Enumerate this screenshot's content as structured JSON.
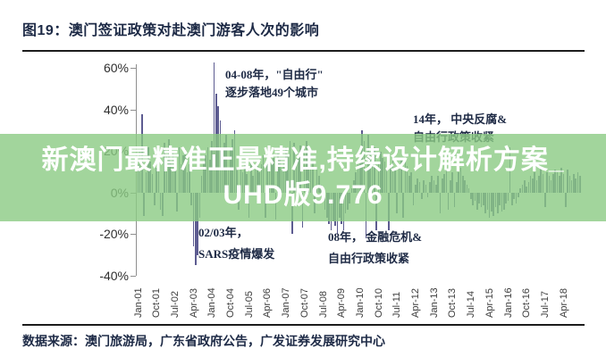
{
  "figure": {
    "title": "图19：澳门签证政策对赴澳门游客人次的影响"
  },
  "source": {
    "text": "数据来源：澳门旅游局，广东省政府公告，广发证券发展研究中心"
  },
  "watermark": {
    "line1": "新澳门最精准正最精准,持续设计解析方案_",
    "line2": "UHD版9.776",
    "band_color": "#8bcb83",
    "text_color": "#ffffff"
  },
  "colors": {
    "bar": "#5d5c91",
    "navy_text": "#1d2a46",
    "axis": "#8f8f8f"
  },
  "chart_data": {
    "type": "bar",
    "title": "澳门签证政策对赴澳门游客人次的影响",
    "xlabel": "",
    "ylabel": "",
    "unit": "%",
    "grid": false,
    "legend": false,
    "ylim": [
      -40,
      60
    ],
    "y_ticks": [
      "60%",
      "40%",
      "20%",
      "0%",
      "-20%",
      "-40%"
    ],
    "start_month": "2001-01",
    "end_month": "2018-12",
    "x_tick_step_months": 9,
    "x_tick_labels": [
      "Jan-01",
      "Oct-01",
      "Jul-02",
      "Apr-03",
      "Jan-04",
      "Oct-04",
      "Jul-05",
      "Apr-06",
      "Jan-07",
      "Oct-07",
      "Jul-08",
      "Apr-09",
      "Jan-10",
      "Oct-10",
      "Jul-11",
      "Apr-12",
      "Jan-13",
      "Oct-13",
      "Jul-14",
      "Apr-15",
      "Jan-16",
      "Oct-16",
      "Jul-17",
      "Apr-18"
    ],
    "values": [
      14,
      20,
      38,
      -11,
      10,
      22,
      15,
      9,
      -6,
      12,
      17,
      -8,
      -11,
      24,
      18,
      26,
      15,
      20,
      12,
      -9,
      22,
      14,
      18,
      21,
      10,
      14,
      -6,
      -26,
      -35,
      -30,
      -12,
      8,
      15,
      18,
      22,
      16,
      25,
      63,
      48,
      42,
      35,
      20,
      24,
      28,
      12,
      22,
      26,
      30,
      12,
      -8,
      15,
      10,
      14,
      9,
      -12,
      16,
      8,
      11,
      13,
      10,
      14,
      18,
      -12,
      16,
      20,
      15,
      17,
      -13,
      19,
      16,
      12,
      15,
      22,
      18,
      25,
      -20,
      24,
      16,
      19,
      23,
      -17,
      21,
      25,
      18,
      20,
      15,
      -10,
      12,
      8,
      4,
      -2,
      -8,
      -12,
      -15,
      -18,
      -14,
      -16,
      -20,
      -12,
      -15,
      -18,
      -10,
      -8,
      -5,
      2,
      6,
      10,
      14,
      18,
      30,
      25,
      -22,
      28,
      20,
      16,
      22,
      -18,
      15,
      20,
      17,
      15,
      12,
      -18,
      14,
      16,
      12,
      -10,
      14,
      16,
      -12,
      15,
      13,
      8,
      10,
      -6,
      4,
      7,
      5,
      -3,
      6,
      4,
      -2,
      5,
      8,
      6,
      4,
      8,
      -10,
      7,
      9,
      12,
      -8,
      6,
      10,
      -7,
      5,
      10,
      12,
      8,
      6,
      4,
      2,
      -3,
      -6,
      -4,
      -8,
      -5,
      -7,
      -6,
      -10,
      -8,
      -12,
      -9,
      -11,
      -7,
      -10,
      -6,
      -9,
      -8,
      -5,
      -4,
      22,
      -6,
      -3,
      -5,
      -2,
      2,
      4,
      6,
      3,
      5,
      8,
      7,
      10,
      6,
      8,
      12,
      9,
      -7,
      10,
      8,
      6,
      9,
      11,
      10,
      8,
      12,
      9,
      -7,
      11,
      8,
      6,
      9,
      7,
      10,
      8
    ],
    "annotations": [
      {
        "lines": [
          "04-08年，\"自由行\"",
          "逐步落地49个城市"
        ]
      },
      {
        "lines": [
          "14年， 中央反腐&",
          "自由行政策收紧"
        ]
      },
      {
        "lines": [
          "02/03年，",
          "SARS疫情爆发"
        ]
      },
      {
        "lines": [
          "08年， 金融危机&",
          "自由行政策收紧"
        ]
      }
    ]
  }
}
